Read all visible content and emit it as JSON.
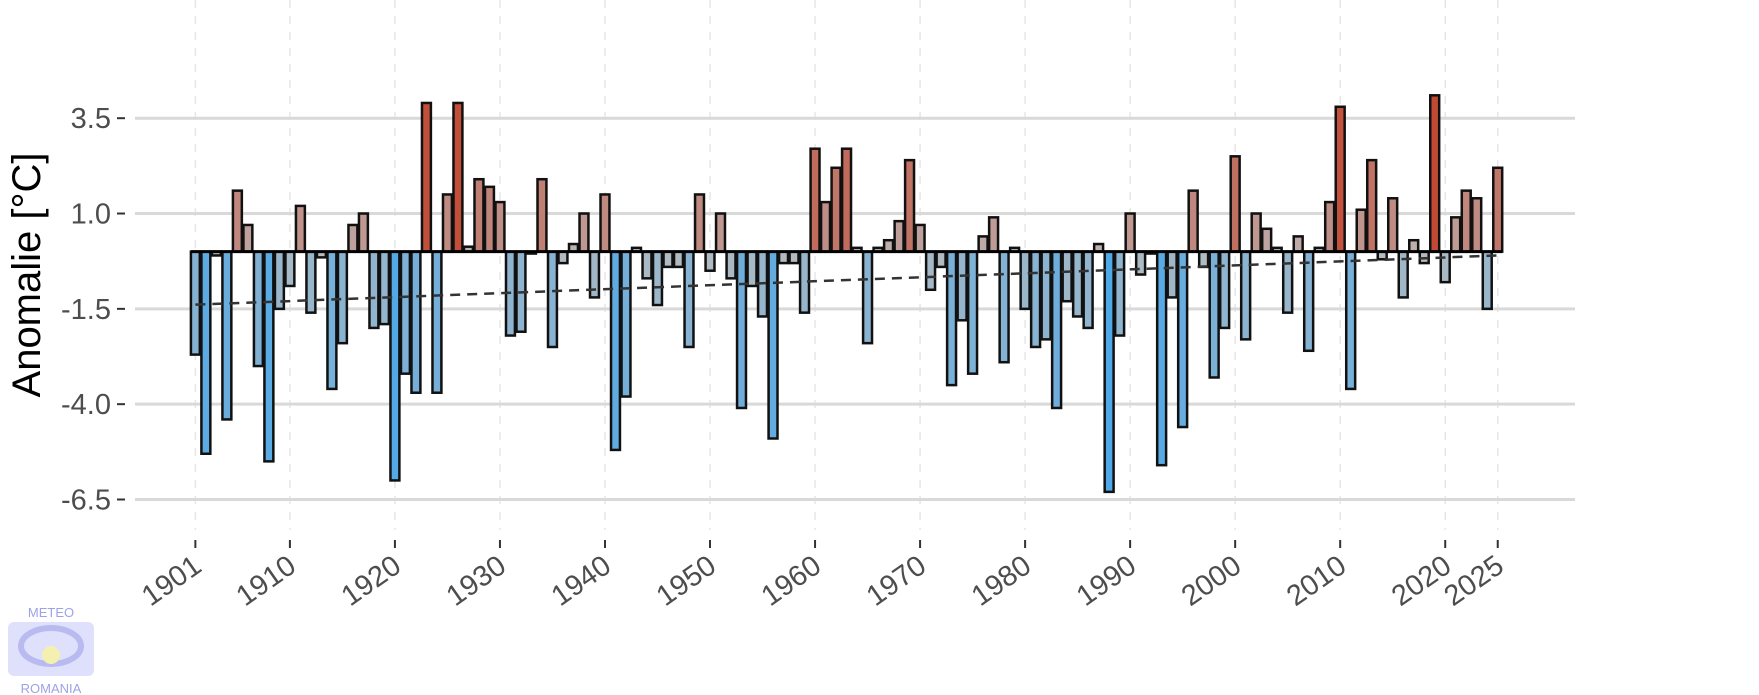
{
  "chart_data": {
    "type": "bar",
    "y_label": "Anomalie [°C]",
    "x": [
      1901,
      1902,
      1903,
      1904,
      1905,
      1906,
      1907,
      1908,
      1909,
      1910,
      1911,
      1912,
      1913,
      1914,
      1915,
      1916,
      1917,
      1918,
      1919,
      1920,
      1921,
      1922,
      1923,
      1924,
      1925,
      1926,
      1927,
      1928,
      1929,
      1930,
      1931,
      1932,
      1933,
      1934,
      1935,
      1936,
      1937,
      1938,
      1939,
      1940,
      1941,
      1942,
      1943,
      1944,
      1945,
      1946,
      1947,
      1948,
      1949,
      1950,
      1951,
      1952,
      1953,
      1954,
      1955,
      1956,
      1957,
      1958,
      1959,
      1960,
      1961,
      1962,
      1963,
      1964,
      1965,
      1966,
      1967,
      1968,
      1969,
      1970,
      1971,
      1972,
      1973,
      1974,
      1975,
      1976,
      1977,
      1978,
      1979,
      1980,
      1981,
      1982,
      1983,
      1984,
      1985,
      1986,
      1987,
      1988,
      1989,
      1990,
      1991,
      1992,
      1993,
      1994,
      1995,
      1996,
      1997,
      1998,
      1999,
      2000,
      2001,
      2002,
      2003,
      2004,
      2005,
      2006,
      2007,
      2008,
      2009,
      2010,
      2011,
      2012,
      2013,
      2014,
      2015,
      2016,
      2017,
      2018,
      2019,
      2020,
      2021,
      2022,
      2023,
      2024,
      2025
    ],
    "values": [
      -2.7,
      -5.3,
      -0.1,
      -4.4,
      1.6,
      0.7,
      -3.0,
      -5.5,
      -1.5,
      -0.9,
      1.2,
      -1.6,
      -0.15,
      -3.6,
      -2.4,
      0.7,
      1.0,
      -2.0,
      -1.9,
      -6.0,
      -3.2,
      -3.7,
      3.9,
      -3.7,
      1.5,
      3.9,
      0.13,
      1.9,
      1.7,
      1.3,
      -2.2,
      -2.1,
      -0.05,
      1.9,
      -2.5,
      -0.3,
      0.2,
      1.0,
      -1.2,
      1.5,
      -5.2,
      -3.8,
      0.1,
      -0.7,
      -1.4,
      -0.4,
      -0.4,
      -2.5,
      1.5,
      -0.5,
      1.0,
      -0.7,
      -4.1,
      -0.9,
      -1.7,
      -4.9,
      -0.3,
      -0.3,
      -1.6,
      2.7,
      1.3,
      2.2,
      2.7,
      0.1,
      -2.4,
      0.1,
      0.3,
      0.8,
      2.4,
      0.7,
      -1.0,
      -0.4,
      -3.5,
      -1.8,
      -3.2,
      0.4,
      0.9,
      -2.9,
      0.1,
      -1.5,
      -2.5,
      -2.3,
      -4.1,
      -1.3,
      -1.7,
      -2.0,
      0.2,
      -6.3,
      -2.2,
      1.0,
      -0.6,
      -0.05,
      -5.6,
      -1.2,
      -4.6,
      1.6,
      -0.4,
      -3.3,
      -2.0,
      2.5,
      -2.3,
      1.0,
      0.6,
      0.1,
      -1.6,
      0.4,
      -2.6,
      0.1,
      1.3,
      3.8,
      -3.6,
      1.1,
      2.4,
      -0.2,
      1.4,
      -1.2,
      0.3,
      -0.3,
      4.1,
      -0.8,
      0.9,
      1.6,
      1.4,
      -1.5,
      2.2
    ],
    "colors": {
      "negative": "#4fa8e8",
      "neutral": "#bdbdbd",
      "positive": "#c24a35"
    },
    "trend": {
      "x": [
        1901,
        2025
      ],
      "values": [
        -1.39,
        -0.1
      ]
    },
    "xlim": [
      1894.3,
      2029.5
    ],
    "ylim": [
      -7.3,
      6.6
    ],
    "xticks": [
      1901,
      1910,
      1920,
      1930,
      1940,
      1950,
      1960,
      1970,
      1980,
      1990,
      2000,
      2010,
      2020,
      2025
    ],
    "yticks": [
      3.5,
      {
        "value": 1,
        "label": "1.0"
      },
      -1.5,
      {
        "value": -4,
        "label": "-4.0"
      },
      -6.5
    ],
    "grid": true,
    "logo": {
      "top": "METEO",
      "bottom": "ROMANIA"
    }
  }
}
